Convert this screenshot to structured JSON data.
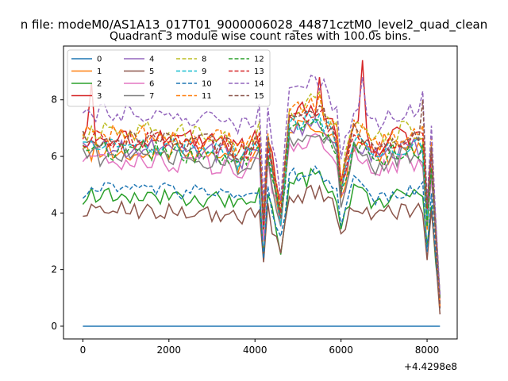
{
  "chart_data": {
    "type": "line",
    "suptitle": "n file: modeM0/AS1A13_017T01_9000006028_44871cztM0_level2_quad_clean",
    "title": "Quadrant 3 module wise count rates with 100.0s bins.",
    "xlabel": "",
    "ylabel": "",
    "offset_text": "+4.4298e8",
    "xlim": [
      -450,
      8700
    ],
    "ylim": [
      -0.45,
      9.9
    ],
    "x_ticks": [
      0,
      2000,
      4000,
      6000,
      8000
    ],
    "y_ticks": [
      0,
      2,
      4,
      6,
      8
    ],
    "grid": false,
    "legend": {
      "placement": "top-left",
      "columns": 4
    },
    "x": {
      "start": 0,
      "step": 100,
      "count": 84
    },
    "series": [
      {
        "name": "0",
        "color": "#1f77b4",
        "dashed": false,
        "base": 0.0,
        "noise": 0.0
      },
      {
        "name": "1",
        "color": "#ff7f0e",
        "dashed": false,
        "base": 6.2,
        "noise": 0.35
      },
      {
        "name": "2",
        "color": "#2ca02c",
        "dashed": false,
        "base": 4.6,
        "noise": 0.3
      },
      {
        "name": "3",
        "color": "#d62728",
        "dashed": false,
        "base": 6.7,
        "noise": 0.4
      },
      {
        "name": "4",
        "color": "#9467bd",
        "dashed": false,
        "base": 6.3,
        "noise": 0.35
      },
      {
        "name": "5",
        "color": "#8c564b",
        "dashed": false,
        "base": 4.1,
        "noise": 0.3
      },
      {
        "name": "6",
        "color": "#e377c2",
        "dashed": false,
        "base": 5.8,
        "noise": 0.35
      },
      {
        "name": "7",
        "color": "#7f7f7f",
        "dashed": false,
        "base": 6.0,
        "noise": 0.35
      },
      {
        "name": "8",
        "color": "#bcbd22",
        "dashed": true,
        "base": 6.9,
        "noise": 0.35
      },
      {
        "name": "9",
        "color": "#17becf",
        "dashed": true,
        "base": 6.4,
        "noise": 0.35
      },
      {
        "name": "10",
        "color": "#1f77b4",
        "dashed": true,
        "base": 4.8,
        "noise": 0.3
      },
      {
        "name": "11",
        "color": "#ff7f0e",
        "dashed": true,
        "base": 6.8,
        "noise": 0.35
      },
      {
        "name": "12",
        "color": "#2ca02c",
        "dashed": true,
        "base": 6.2,
        "noise": 0.35
      },
      {
        "name": "13",
        "color": "#d62728",
        "dashed": true,
        "base": 6.6,
        "noise": 0.35
      },
      {
        "name": "14",
        "color": "#9467bd",
        "dashed": true,
        "base": 7.5,
        "noise": 0.35
      },
      {
        "name": "15",
        "color": "#8c564b",
        "dashed": true,
        "base": 6.6,
        "noise": 0.35
      }
    ],
    "envelope": {
      "x": [
        0,
        1500,
        3400,
        3600,
        4100,
        4200,
        4300,
        4600,
        4800,
        5500,
        5900,
        6000,
        6300,
        6800,
        7400,
        7900,
        8000,
        8100,
        8300
      ],
      "mult": [
        1.0,
        1.0,
        0.97,
        0.92,
        1.0,
        0.55,
        1.0,
        0.6,
        1.1,
        1.16,
        1.0,
        0.75,
        1.05,
        0.95,
        1.0,
        1.0,
        0.6,
        0.95,
        0.12
      ]
    },
    "spikes": [
      {
        "series": "3",
        "x": 200,
        "y": 8.6
      },
      {
        "series": "3",
        "x": 5500,
        "y": 8.8
      },
      {
        "series": "3",
        "x": 6500,
        "y": 9.4
      },
      {
        "series": "14",
        "x": 6500,
        "y": 8.8
      },
      {
        "series": "14",
        "x": 7900,
        "y": 8.3
      },
      {
        "series": "15",
        "x": 7900,
        "y": 8.0
      }
    ]
  }
}
